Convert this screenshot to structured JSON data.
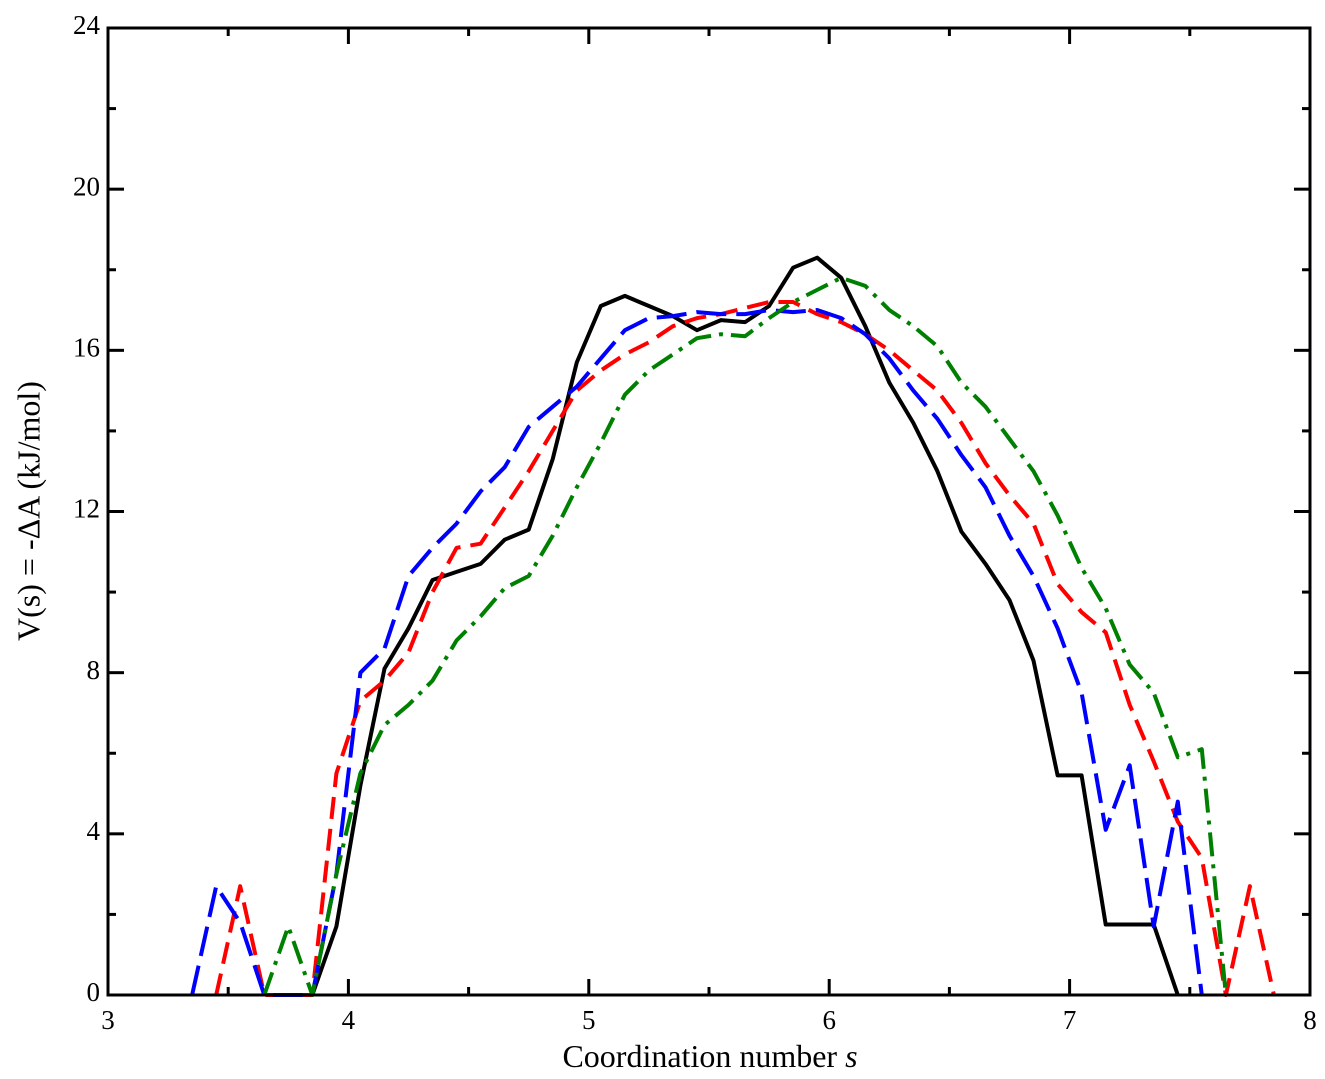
{
  "chart_data": {
    "type": "line",
    "xlabel": "Coordination number",
    "xlabel_var": "s",
    "ylabel": "V(s) = -ΔA (kJ/mol)",
    "xlim": [
      3,
      8
    ],
    "xticks": [
      3,
      4,
      5,
      6,
      7,
      8
    ],
    "xminor": [
      3.5,
      4.5,
      5.5,
      6.5,
      7.5
    ],
    "ylim": [
      0,
      24
    ],
    "yticks": [
      0,
      4,
      8,
      12,
      16,
      20,
      24
    ],
    "yminor": [
      2,
      6,
      10,
      14,
      18,
      22
    ],
    "series": [
      {
        "color": "#000000",
        "dash": "none",
        "x": [
          3.85,
          3.95,
          4.05,
          4.15,
          4.25,
          4.35,
          4.45,
          4.55,
          4.65,
          4.75,
          4.85,
          4.95,
          5.05,
          5.15,
          5.25,
          5.35,
          5.45,
          5.55,
          5.65,
          5.75,
          5.85,
          5.95,
          6.05,
          6.15,
          6.25,
          6.35,
          6.45,
          6.55,
          6.65,
          6.75,
          6.85,
          6.95,
          7.05,
          7.15,
          7.25,
          7.35,
          7.45
        ],
        "values": [
          0,
          1.7,
          5.2,
          8.1,
          9.1,
          10.3,
          10.5,
          10.7,
          11.3,
          11.55,
          13.3,
          15.7,
          17.1,
          17.35,
          17.1,
          16.85,
          16.5,
          16.75,
          16.7,
          17.1,
          18.05,
          18.3,
          17.8,
          16.6,
          15.2,
          14.2,
          13.0,
          11.5,
          10.7,
          9.8,
          8.3,
          5.45,
          5.45,
          1.75,
          1.75,
          1.75,
          0
        ]
      },
      {
        "color": "#ff0000",
        "dash": "22,10",
        "x": [
          3.45,
          3.55,
          3.65,
          3.75,
          3.85,
          3.95,
          4.05,
          4.15,
          4.25,
          4.35,
          4.45,
          4.55,
          4.65,
          4.75,
          4.85,
          4.95,
          5.05,
          5.15,
          5.25,
          5.35,
          5.45,
          5.55,
          5.65,
          5.75,
          5.85,
          5.95,
          6.05,
          6.15,
          6.25,
          6.35,
          6.45,
          6.55,
          6.65,
          6.75,
          6.85,
          6.95,
          7.05,
          7.15,
          7.25,
          7.35,
          7.45,
          7.55,
          7.65,
          7.75,
          7.85
        ],
        "values": [
          0,
          2.7,
          0,
          0,
          0,
          5.5,
          7.3,
          7.8,
          8.5,
          10.0,
          11.1,
          11.2,
          12.1,
          13.0,
          14.0,
          15.0,
          15.5,
          15.9,
          16.2,
          16.6,
          16.8,
          16.9,
          17.05,
          17.2,
          17.2,
          16.9,
          16.7,
          16.4,
          16.0,
          15.5,
          15.0,
          14.2,
          13.2,
          12.4,
          11.7,
          10.2,
          9.5,
          9.0,
          7.2,
          5.8,
          4.3,
          3.4,
          0,
          2.7,
          0
        ]
      },
      {
        "color": "#0000ff",
        "dash": "30,10",
        "x": [
          3.35,
          3.45,
          3.55,
          3.65,
          3.75,
          3.85,
          3.95,
          4.05,
          4.15,
          4.25,
          4.35,
          4.45,
          4.55,
          4.65,
          4.75,
          4.85,
          4.95,
          5.05,
          5.15,
          5.25,
          5.35,
          5.45,
          5.55,
          5.65,
          5.75,
          5.85,
          5.95,
          6.05,
          6.15,
          6.25,
          6.35,
          6.45,
          6.55,
          6.65,
          6.75,
          6.85,
          6.95,
          7.05,
          7.15,
          7.25,
          7.35,
          7.45,
          7.55
        ],
        "values": [
          0,
          2.7,
          1.8,
          0,
          0,
          0,
          3.0,
          8.0,
          8.6,
          10.4,
          11.1,
          11.7,
          12.5,
          13.1,
          14.1,
          14.6,
          15.1,
          15.8,
          16.5,
          16.8,
          16.85,
          16.95,
          16.9,
          16.9,
          17.0,
          16.95,
          17.0,
          16.8,
          16.4,
          15.8,
          15.0,
          14.3,
          13.4,
          12.6,
          11.4,
          10.4,
          9.1,
          7.5,
          4.1,
          5.7,
          1.7,
          4.8,
          0
        ]
      },
      {
        "color": "#008000",
        "dash": "24,8,4,8",
        "x": [
          3.65,
          3.75,
          3.85,
          3.95,
          4.05,
          4.15,
          4.25,
          4.35,
          4.45,
          4.55,
          4.65,
          4.75,
          4.85,
          4.95,
          5.05,
          5.15,
          5.25,
          5.35,
          5.45,
          5.55,
          5.65,
          5.75,
          5.85,
          5.95,
          6.05,
          6.15,
          6.25,
          6.35,
          6.45,
          6.55,
          6.65,
          6.75,
          6.85,
          6.95,
          7.05,
          7.15,
          7.25,
          7.35,
          7.45,
          7.55,
          7.65
        ],
        "values": [
          0,
          1.7,
          0,
          3.0,
          5.5,
          6.7,
          7.2,
          7.8,
          8.8,
          9.4,
          10.1,
          10.4,
          11.4,
          12.6,
          13.7,
          14.9,
          15.5,
          15.9,
          16.3,
          16.4,
          16.35,
          16.8,
          17.2,
          17.5,
          17.8,
          17.6,
          17.0,
          16.6,
          16.1,
          15.2,
          14.6,
          13.8,
          13.0,
          11.9,
          10.6,
          9.6,
          8.2,
          7.5,
          5.9,
          6.1,
          0
        ]
      }
    ]
  }
}
